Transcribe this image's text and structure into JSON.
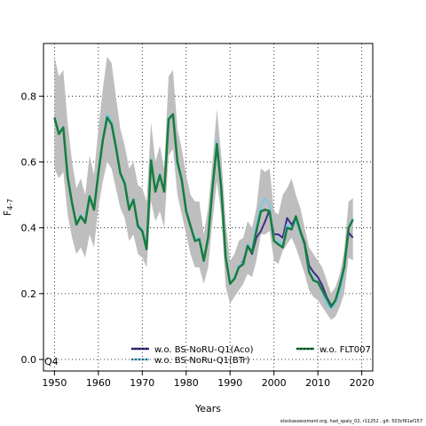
{
  "chart_data": {
    "type": "line",
    "title": "",
    "xlabel": "Years",
    "ylabel_main": "F",
    "ylabel_sub": "4-7",
    "xlim": [
      1947.5,
      2022.5
    ],
    "ylim": [
      -0.035,
      0.96
    ],
    "xticks": [
      1950,
      1960,
      1970,
      1980,
      1990,
      2000,
      2010,
      2020
    ],
    "yticks": [
      0.0,
      0.2,
      0.4,
      0.6,
      0.8
    ],
    "ytick_labels": [
      "0.0",
      "0.2",
      "0.4",
      "0.6",
      "0.8"
    ],
    "grid": true,
    "annotation": "Q4",
    "legend_position": "bottom",
    "x": [
      1950,
      1951,
      1952,
      1953,
      1954,
      1955,
      1956,
      1957,
      1958,
      1959,
      1960,
      1961,
      1962,
      1963,
      1964,
      1965,
      1966,
      1967,
      1968,
      1969,
      1970,
      1971,
      1972,
      1973,
      1974,
      1975,
      1976,
      1977,
      1978,
      1979,
      1980,
      1981,
      1982,
      1983,
      1984,
      1985,
      1986,
      1987,
      1988,
      1989,
      1990,
      1991,
      1992,
      1993,
      1994,
      1995,
      1996,
      1997,
      1998,
      1999,
      2000,
      2001,
      2002,
      2003,
      2004,
      2005,
      2006,
      2007,
      2008,
      2009,
      2010,
      2011,
      2012,
      2013,
      2014,
      2015,
      2016,
      2017,
      2018
    ],
    "ci_upper": [
      0.92,
      0.86,
      0.88,
      0.72,
      0.6,
      0.52,
      0.55,
      0.5,
      0.62,
      0.56,
      0.7,
      0.82,
      0.92,
      0.9,
      0.8,
      0.7,
      0.65,
      0.58,
      0.6,
      0.53,
      0.52,
      0.48,
      0.72,
      0.6,
      0.65,
      0.58,
      0.86,
      0.88,
      0.7,
      0.64,
      0.56,
      0.5,
      0.48,
      0.48,
      0.38,
      0.46,
      0.6,
      0.76,
      0.62,
      0.42,
      0.3,
      0.32,
      0.36,
      0.37,
      0.42,
      0.4,
      0.46,
      0.58,
      0.57,
      0.58,
      0.45,
      0.44,
      0.5,
      0.52,
      0.55,
      0.5,
      0.46,
      0.4,
      0.34,
      0.32,
      0.3,
      0.28,
      0.24,
      0.2,
      0.22,
      0.26,
      0.33,
      0.48,
      0.49
    ],
    "ci_lower": [
      0.58,
      0.55,
      0.57,
      0.44,
      0.37,
      0.32,
      0.34,
      0.31,
      0.38,
      0.34,
      0.46,
      0.54,
      0.6,
      0.58,
      0.52,
      0.46,
      0.43,
      0.36,
      0.38,
      0.32,
      0.31,
      0.28,
      0.48,
      0.42,
      0.45,
      0.4,
      0.62,
      0.64,
      0.5,
      0.44,
      0.38,
      0.32,
      0.28,
      0.28,
      0.23,
      0.28,
      0.42,
      0.54,
      0.44,
      0.22,
      0.17,
      0.19,
      0.21,
      0.23,
      0.26,
      0.25,
      0.3,
      0.38,
      0.38,
      0.39,
      0.3,
      0.29,
      0.33,
      0.35,
      0.37,
      0.34,
      0.3,
      0.26,
      0.21,
      0.19,
      0.18,
      0.16,
      0.14,
      0.12,
      0.13,
      0.16,
      0.2,
      0.31,
      0.3
    ],
    "series": [
      {
        "name": "w.o. BS-NoRU-Q1(Aco)",
        "color": "#3a2e8c",
        "dash": "none",
        "width": 2,
        "values": [
          0.735,
          0.685,
          0.705,
          0.555,
          0.475,
          0.41,
          0.435,
          0.415,
          0.495,
          0.455,
          0.565,
          0.665,
          0.735,
          0.715,
          0.645,
          0.565,
          0.535,
          0.455,
          0.485,
          0.405,
          0.39,
          0.335,
          0.605,
          0.51,
          0.56,
          0.51,
          0.73,
          0.745,
          0.6,
          0.545,
          0.45,
          0.405,
          0.36,
          0.365,
          0.3,
          0.37,
          0.52,
          0.65,
          0.52,
          0.31,
          0.23,
          0.245,
          0.28,
          0.3,
          0.345,
          0.32,
          0.37,
          0.39,
          0.42,
          0.455,
          0.38,
          0.38,
          0.37,
          0.43,
          0.41,
          0.43,
          0.39,
          0.355,
          0.285,
          0.265,
          0.25,
          0.225,
          0.19,
          0.165,
          0.175,
          0.22,
          0.28,
          0.385,
          0.37
        ]
      },
      {
        "name": "w.o. BS-NoRu-Q1(BTr)",
        "color": "#7fc7e6",
        "dash": "none",
        "width": 2.2,
        "values": [
          0.735,
          0.69,
          0.705,
          0.56,
          0.48,
          0.41,
          0.44,
          0.42,
          0.5,
          0.46,
          0.57,
          0.67,
          0.745,
          0.725,
          0.65,
          0.57,
          0.54,
          0.46,
          0.49,
          0.41,
          0.395,
          0.34,
          0.61,
          0.515,
          0.565,
          0.515,
          0.735,
          0.745,
          0.605,
          0.55,
          0.455,
          0.41,
          0.365,
          0.37,
          0.305,
          0.375,
          0.525,
          0.665,
          0.525,
          0.315,
          0.235,
          0.25,
          0.285,
          0.295,
          0.35,
          0.33,
          0.41,
          0.47,
          0.49,
          0.47,
          0.365,
          0.36,
          0.35,
          0.41,
          0.4,
          0.42,
          0.38,
          0.35,
          0.27,
          0.245,
          0.235,
          0.205,
          0.165,
          0.155,
          0.17,
          0.205,
          0.27,
          0.4,
          0.43
        ]
      },
      {
        "name": "w.o. FLT007",
        "color": "#177d3e",
        "dash": "none",
        "width": 2.5,
        "values": [
          0.735,
          0.685,
          0.705,
          0.555,
          0.475,
          0.41,
          0.435,
          0.415,
          0.495,
          0.455,
          0.565,
          0.665,
          0.735,
          0.715,
          0.645,
          0.565,
          0.535,
          0.455,
          0.485,
          0.405,
          0.39,
          0.335,
          0.605,
          0.51,
          0.56,
          0.51,
          0.73,
          0.745,
          0.6,
          0.545,
          0.45,
          0.405,
          0.36,
          0.365,
          0.3,
          0.37,
          0.52,
          0.655,
          0.52,
          0.31,
          0.23,
          0.245,
          0.28,
          0.29,
          0.345,
          0.325,
          0.39,
          0.45,
          0.455,
          0.45,
          0.36,
          0.35,
          0.34,
          0.4,
          0.395,
          0.435,
          0.39,
          0.35,
          0.265,
          0.24,
          0.235,
          0.21,
          0.185,
          0.16,
          0.18,
          0.225,
          0.28,
          0.4,
          0.425
        ]
      }
    ],
    "legend": [
      {
        "label": "w.o. BS-NoRU-Q1(Aco)",
        "color": "#3a2e8c",
        "dashes": true
      },
      {
        "label": "w.o. BS-NoRu-Q1(BTr)",
        "color": "#7fc7e6",
        "dashes": true
      },
      {
        "label": "w.o. FLT007",
        "color": "#177d3e",
        "dashes": true
      }
    ]
  },
  "footer_text": "stockassessment.org, had_spaly_02, r11252 , git: 503cf91af157",
  "colors": {
    "ci_band": "#bebebe",
    "frame": "#000000",
    "grid": "#000000"
  }
}
